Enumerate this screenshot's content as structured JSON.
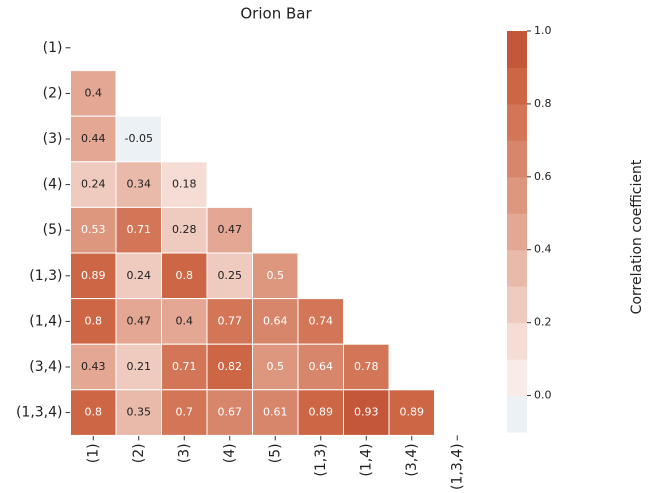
{
  "chart_data": {
    "type": "heatmap",
    "title": "Orion Bar",
    "labels": [
      "(1)",
      "(2)",
      "(3)",
      "(4)",
      "(5)",
      "(1,3)",
      "(1,4)",
      "(3,4)",
      "(1,3,4)"
    ],
    "values": [
      [
        null,
        null,
        null,
        null,
        null,
        null,
        null,
        null,
        null
      ],
      [
        0.4,
        null,
        null,
        null,
        null,
        null,
        null,
        null,
        null
      ],
      [
        0.44,
        -0.05,
        null,
        null,
        null,
        null,
        null,
        null,
        null
      ],
      [
        0.24,
        0.34,
        0.18,
        null,
        null,
        null,
        null,
        null,
        null
      ],
      [
        0.53,
        0.71,
        0.28,
        0.47,
        null,
        null,
        null,
        null,
        null
      ],
      [
        0.89,
        0.24,
        0.8,
        0.25,
        0.5,
        null,
        null,
        null,
        null
      ],
      [
        0.8,
        0.47,
        0.4,
        0.77,
        0.64,
        0.74,
        null,
        null,
        null
      ],
      [
        0.43,
        0.21,
        0.71,
        0.82,
        0.5,
        0.64,
        0.78,
        null,
        null
      ],
      [
        0.8,
        0.35,
        0.7,
        0.67,
        0.61,
        0.89,
        0.93,
        0.89,
        null
      ]
    ],
    "colorbar_label": "Correlation coefficient",
    "clim": [
      -0.1,
      1.0
    ],
    "colors": [
      "#ebf1f4",
      "#f9ece8",
      "#f5dcd4",
      "#efcabe",
      "#e9b9aa",
      "#e3a794",
      "#dd977f",
      "#d7866b",
      "#d27657",
      "#cc6644",
      "#c4573a"
    ],
    "cticks": [
      {
        "value": 0,
        "label": "0.0"
      },
      {
        "value": 0.2,
        "label": "0.2"
      },
      {
        "value": 0.4,
        "label": "0.4"
      },
      {
        "value": 0.6,
        "label": "0.6"
      },
      {
        "value": 0.8,
        "label": "0.8"
      },
      {
        "value": 1,
        "label": "1.0"
      }
    ]
  }
}
